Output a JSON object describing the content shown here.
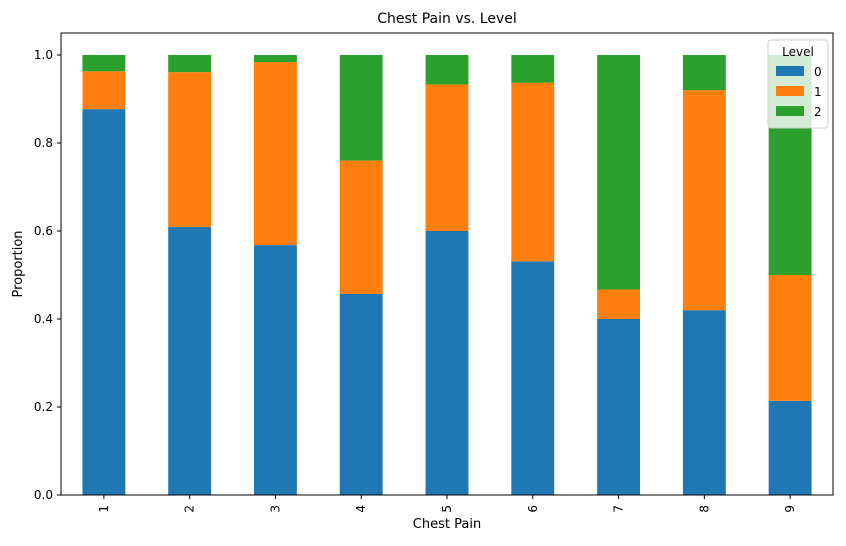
{
  "chart_data": {
    "type": "bar",
    "stacked": true,
    "title": "Chest Pain vs. Level",
    "xlabel": "Chest Pain",
    "ylabel": "Proportion",
    "ylim": [
      0,
      1.05
    ],
    "yticks": [
      "0.0",
      "0.2",
      "0.4",
      "0.6",
      "0.8",
      "1.0"
    ],
    "categories": [
      "1",
      "2",
      "3",
      "4",
      "5",
      "6",
      "7",
      "8",
      "9"
    ],
    "series": [
      {
        "name": "0",
        "color": "#1f77b4",
        "values": [
          0.877,
          0.609,
          0.568,
          0.457,
          0.6,
          0.531,
          0.4,
          0.42,
          0.214
        ]
      },
      {
        "name": "1",
        "color": "#ff7f0e",
        "values": [
          0.086,
          0.352,
          0.416,
          0.303,
          0.333,
          0.406,
          0.067,
          0.5,
          0.286
        ]
      },
      {
        "name": "2",
        "color": "#2ca02c",
        "values": [
          0.037,
          0.039,
          0.016,
          0.24,
          0.067,
          0.063,
          0.533,
          0.08,
          0.5
        ]
      }
    ],
    "legend": {
      "title": "Level",
      "placement": "top-right"
    },
    "grid": false
  }
}
